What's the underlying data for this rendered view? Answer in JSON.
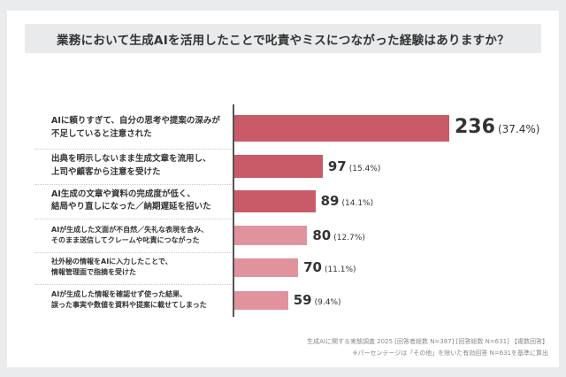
{
  "chart_data": {
    "type": "bar",
    "orientation": "horizontal",
    "title": "業務において生成AIを活用したことで叱責やミスにつながった経験はありますか？",
    "categories": [
      "AIに頼りすぎて、自分の思考や提案の深みが\n不足していると注意された",
      "出典を明示しないまま生成文章を流用し、\n上司や顧客から注意を受けた",
      "AI生成の文章や資料の完成度が低く、\n結局やり直しになった／納期遅延を招いた",
      "AIが生成した文面が不自然／失礼な表現を含み、\nそのまま送信してクレームや叱責につながった",
      "社外秘の情報をAIに入力したことで、\n情報管理面で指摘を受けた",
      "AIが生成した情報を確認せず使った結果、\n誤った事実や数値を資料や提案に載せてしまった"
    ],
    "values": [
      236,
      97,
      89,
      80,
      70,
      59
    ],
    "percent_labels": [
      "(37.4%)",
      "(15.4%)",
      "(14.1%)",
      "(12.7%)",
      "(11.1%)",
      "(9.4%)"
    ],
    "bar_colors": [
      "#c95b69",
      "#c95b69",
      "#c95b69",
      "#e0939c",
      "#e0939c",
      "#e0939c"
    ],
    "grid": false,
    "legend": "none"
  },
  "footnotes": [
    "生成AIに関する実態調査 2025 [回答者総数 N=387] [回答総数 N=631] 【複数回答】",
    "※パーセンテージは「その他」を除いた有効回答 N=631を基準に算出"
  ]
}
